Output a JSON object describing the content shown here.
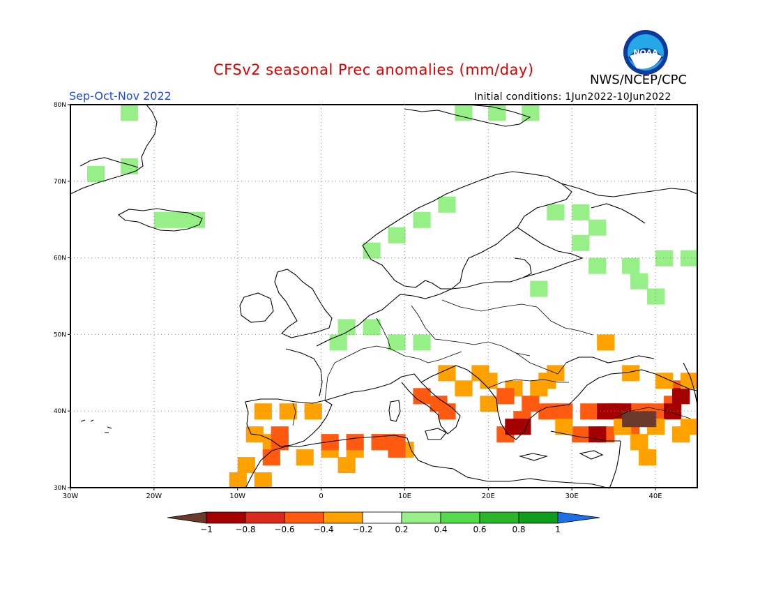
{
  "header": {
    "title": "CFSv2 seasonal Prec anomalies (mm/day)",
    "agency": "NWS/NCEP/CPC",
    "logo_text": "NOAA",
    "season": "Sep-Oct-Nov 2022",
    "initial_conditions": "Initial conditions: 1Jun2022-10Jun2022"
  },
  "map": {
    "lon_range": [
      -30,
      45
    ],
    "lat_range": [
      30,
      80
    ],
    "lon_ticks": [
      {
        "value": -30,
        "label": "30W"
      },
      {
        "value": -20,
        "label": "20W"
      },
      {
        "value": -10,
        "label": "10W"
      },
      {
        "value": 0,
        "label": "0"
      },
      {
        "value": 10,
        "label": "10E"
      },
      {
        "value": 20,
        "label": "20E"
      },
      {
        "value": 30,
        "label": "30E"
      },
      {
        "value": 40,
        "label": "40E"
      }
    ],
    "lat_ticks": [
      {
        "value": 30,
        "label": "30N"
      },
      {
        "value": 40,
        "label": "40N"
      },
      {
        "value": 50,
        "label": "50N"
      },
      {
        "value": 60,
        "label": "60N"
      },
      {
        "value": 70,
        "label": "70N"
      },
      {
        "value": 80,
        "label": "80N"
      }
    ],
    "grid": "dotted",
    "anomaly_regions": [
      {
        "name": "Greenland coast",
        "class": 0.3,
        "cells": [
          [
            -23,
            79
          ],
          [
            -27,
            71
          ],
          [
            -23,
            72
          ]
        ]
      },
      {
        "name": "Iceland",
        "class": 0.3,
        "cells": [
          [
            -19,
            65
          ],
          [
            -17,
            65
          ],
          [
            -15,
            65
          ]
        ]
      },
      {
        "name": "Svalbard",
        "class": 0.3,
        "cells": [
          [
            17,
            79
          ],
          [
            21,
            79
          ],
          [
            25,
            79
          ]
        ]
      },
      {
        "name": "Norway",
        "class": 0.3,
        "cells": [
          [
            6,
            61
          ],
          [
            9,
            63
          ],
          [
            12,
            65
          ],
          [
            15,
            67
          ]
        ]
      },
      {
        "name": "N Russia",
        "class": 0.3,
        "cells": [
          [
            28,
            66
          ],
          [
            31,
            66
          ],
          [
            33,
            64
          ],
          [
            31,
            62
          ]
        ]
      },
      {
        "name": "Central Russia",
        "class": 0.3,
        "cells": [
          [
            33,
            59
          ],
          [
            37,
            59
          ],
          [
            41,
            60
          ],
          [
            44,
            60
          ],
          [
            38,
            57
          ],
          [
            40,
            55
          ],
          [
            26,
            56
          ]
        ]
      },
      {
        "name": "Benelux Germany",
        "class": 0.3,
        "cells": [
          [
            3,
            51
          ],
          [
            6,
            51
          ],
          [
            9,
            49
          ],
          [
            12,
            49
          ],
          [
            2,
            49
          ]
        ]
      },
      {
        "name": "Iberia",
        "class": -0.3,
        "cells": [
          [
            -7,
            40
          ],
          [
            -4,
            40
          ],
          [
            -1,
            40
          ],
          [
            -8,
            37
          ],
          [
            -6,
            36
          ],
          [
            -9,
            33
          ],
          [
            -7,
            31
          ],
          [
            -10,
            31
          ]
        ]
      },
      {
        "name": "Iberia S",
        "class": -0.5,
        "cells": [
          [
            -5,
            37
          ],
          [
            -5,
            36
          ],
          [
            -6,
            34
          ]
        ]
      },
      {
        "name": "N Africa",
        "class": -0.3,
        "cells": [
          [
            -2,
            34
          ],
          [
            1,
            35
          ],
          [
            4,
            35
          ],
          [
            7,
            36
          ],
          [
            10,
            35
          ],
          [
            3,
            33
          ]
        ]
      },
      {
        "name": "N Africa core",
        "class": -0.5,
        "cells": [
          [
            1,
            36
          ],
          [
            4,
            36
          ],
          [
            7,
            36
          ],
          [
            9,
            36
          ],
          [
            9,
            35
          ]
        ]
      },
      {
        "name": "Italy",
        "class": -0.5,
        "cells": [
          [
            12,
            42
          ],
          [
            14,
            41
          ],
          [
            15,
            40
          ]
        ]
      },
      {
        "name": "Balkans",
        "class": -0.3,
        "cells": [
          [
            17,
            43
          ],
          [
            20,
            44
          ],
          [
            23,
            43
          ],
          [
            26,
            43
          ],
          [
            20,
            41
          ],
          [
            15,
            45
          ],
          [
            19,
            45
          ]
        ]
      },
      {
        "name": "Balkans core",
        "class": -0.5,
        "cells": [
          [
            22,
            42
          ],
          [
            25,
            41
          ],
          [
            27,
            40
          ],
          [
            24,
            39
          ],
          [
            22,
            37
          ]
        ]
      },
      {
        "name": "Greece",
        "class": -0.9,
        "cells": [
          [
            23,
            38
          ],
          [
            24,
            38
          ]
        ]
      },
      {
        "name": "Turkey",
        "class": -0.5,
        "cells": [
          [
            29,
            40
          ],
          [
            32,
            40
          ],
          [
            35,
            40
          ],
          [
            38,
            40
          ],
          [
            31,
            37
          ],
          [
            34,
            37
          ],
          [
            37,
            38
          ],
          [
            40,
            40
          ],
          [
            42,
            41
          ],
          [
            43,
            43
          ]
        ]
      },
      {
        "name": "Turkey core",
        "class": -0.9,
        "cells": [
          [
            34,
            40
          ],
          [
            36,
            40
          ],
          [
            43,
            42
          ],
          [
            42,
            40
          ],
          [
            33,
            37
          ]
        ]
      },
      {
        "name": "Anatolia",
        "class": -0.3,
        "cells": [
          [
            29,
            38
          ],
          [
            36,
            38
          ],
          [
            40,
            38
          ],
          [
            43,
            37
          ],
          [
            44,
            38
          ],
          [
            38,
            36
          ],
          [
            39,
            34
          ],
          [
            41,
            44
          ],
          [
            44,
            44
          ],
          [
            27,
            44
          ],
          [
            28,
            45
          ],
          [
            37,
            45
          ],
          [
            34,
            49
          ]
        ]
      },
      {
        "name": "Turkey SE",
        "class": -1.1,
        "cells": [
          [
            37,
            39
          ],
          [
            39,
            39
          ]
        ]
      }
    ]
  },
  "colorbar": {
    "labels": [
      "-1",
      "-0.8",
      "-0.6",
      "-0.4",
      "-0.2",
      "0.2",
      "0.4",
      "0.6",
      "0.8",
      "1"
    ],
    "colors": [
      "#6b3a2c",
      "#a40000",
      "#d92b1c",
      "#ff5a10",
      "#ffa200",
      "#ffffff",
      "#97ef87",
      "#56d94d",
      "#2ab52b",
      "#119d1c",
      "#1f6ee6"
    ]
  }
}
